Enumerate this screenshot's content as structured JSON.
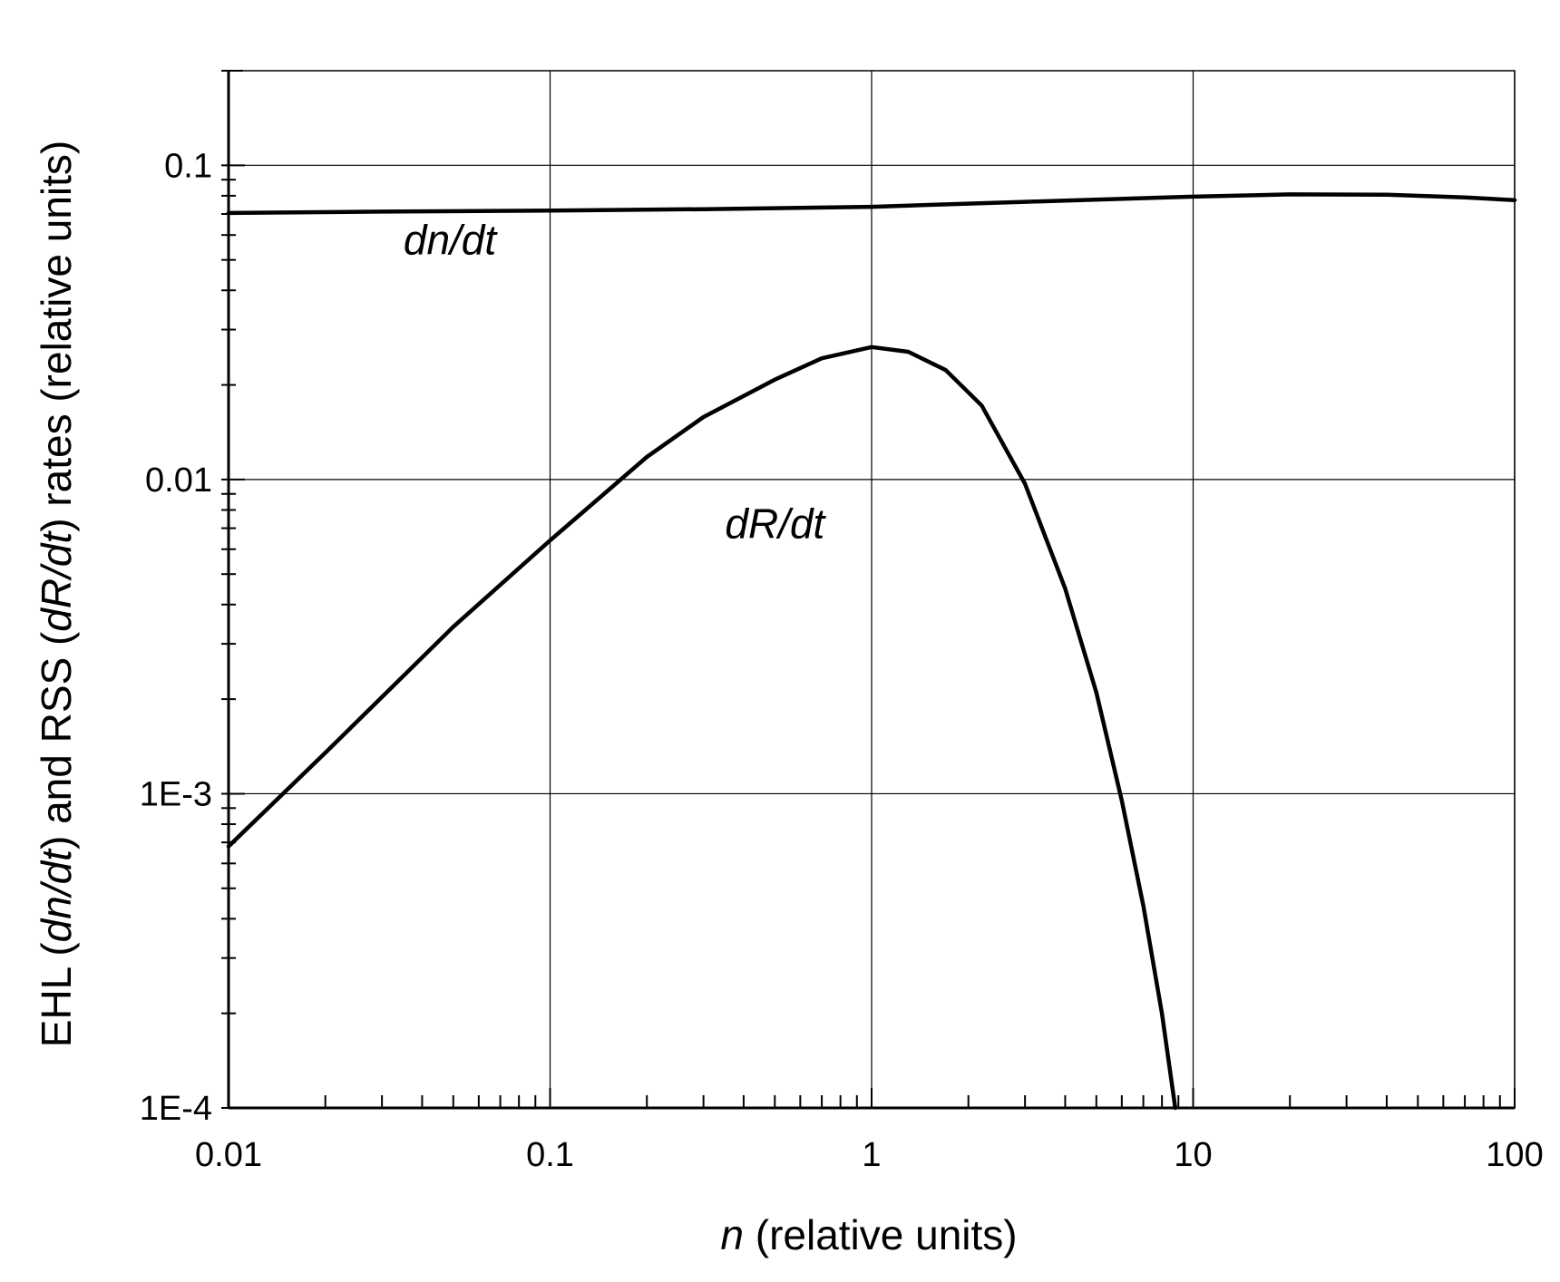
{
  "chart_data": {
    "type": "line",
    "x_scale": "log",
    "y_scale": "log",
    "xlim": [
      0.01,
      100
    ],
    "ylim": [
      0.0001,
      0.2
    ],
    "grid": true,
    "legend": "none",
    "x_ticks": [
      {
        "value": 0.01,
        "label": "0.01"
      },
      {
        "value": 0.1,
        "label": "0.1"
      },
      {
        "value": 1,
        "label": "1"
      },
      {
        "value": 10,
        "label": "10"
      },
      {
        "value": 100,
        "label": "100"
      }
    ],
    "y_ticks": [
      {
        "value": 0.0001,
        "label": "1E-4"
      },
      {
        "value": 0.001,
        "label": "1E-3"
      },
      {
        "value": 0.01,
        "label": "0.01"
      },
      {
        "value": 0.1,
        "label": "0.1"
      }
    ],
    "xlabel": {
      "italic": "n",
      "rest": " (relative units)"
    },
    "ylabel": {
      "parts": [
        {
          "text": "EHL (",
          "italic": false
        },
        {
          "text": "dn/dt",
          "italic": true
        },
        {
          "text": ") and RSS (",
          "italic": false
        },
        {
          "text": "dR/dt",
          "italic": true
        },
        {
          "text": ") rates (relative units)",
          "italic": false
        }
      ]
    },
    "series": [
      {
        "label": "dn/dt",
        "x": [
          0.01,
          0.03,
          0.1,
          0.3,
          1,
          3,
          10,
          20,
          40,
          70,
          100
        ],
        "y": [
          0.0705,
          0.0712,
          0.0718,
          0.0725,
          0.0738,
          0.0765,
          0.0795,
          0.0808,
          0.0806,
          0.079,
          0.0775
        ]
      },
      {
        "label": "dR/dt",
        "x": [
          0.01,
          0.02,
          0.05,
          0.1,
          0.2,
          0.3,
          0.5,
          0.7,
          1.0,
          1.3,
          1.7,
          2.2,
          3.0,
          4.0,
          5.0,
          6.0,
          7.0,
          8.0,
          8.8
        ],
        "y": [
          0.00068,
          0.00135,
          0.0034,
          0.0064,
          0.0118,
          0.0158,
          0.0208,
          0.0243,
          0.0264,
          0.0255,
          0.0223,
          0.0172,
          0.0097,
          0.0045,
          0.0021,
          0.00095,
          0.00044,
          0.0002,
          0.0001
        ]
      }
    ],
    "annotations": [
      {
        "text": "dn/dt",
        "x": 0.035,
        "y": 0.052
      },
      {
        "text": "dR/dt",
        "x": 0.35,
        "y": 0.0065
      }
    ]
  }
}
